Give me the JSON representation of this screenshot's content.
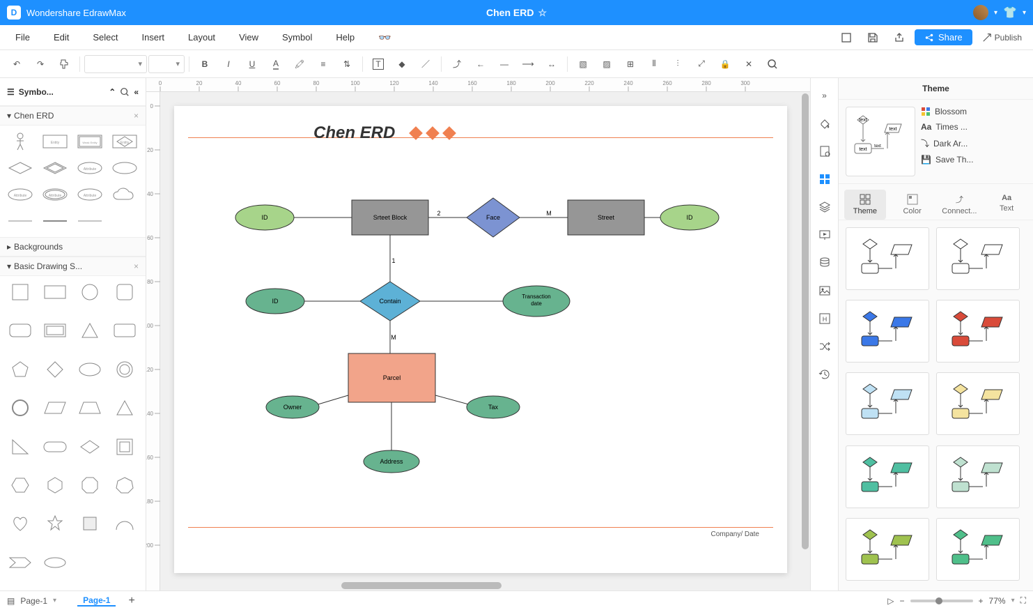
{
  "app_name": "Wondershare EdrawMax",
  "document_name": "Chen ERD",
  "menubar": {
    "items": [
      "File",
      "Edit",
      "Select",
      "Insert",
      "Layout",
      "View",
      "Symbol",
      "Help"
    ]
  },
  "actions": {
    "share": "Share",
    "publish": "Publish"
  },
  "left_panel": {
    "header": "Symbo...",
    "sections": {
      "chen": "Chen ERD",
      "backgrounds": "Backgrounds",
      "basic": "Basic Drawing S..."
    }
  },
  "canvas": {
    "ruler_ticks": [
      "0",
      "20",
      "40",
      "60",
      "80",
      "100",
      "120",
      "140",
      "160",
      "180",
      "200",
      "220",
      "240",
      "260",
      "280",
      "300"
    ],
    "v_ticks": [
      "0",
      "20",
      "40",
      "60",
      "80",
      "100",
      "120",
      "140",
      "160",
      "180",
      "200"
    ],
    "title": "Chen ERD",
    "footer": "Company/ Date",
    "nodes": {
      "id1": "ID",
      "street_block": "Srteet Block",
      "face": "Face",
      "street": "Street",
      "id2": "ID",
      "id3": "ID",
      "contain": "Contain",
      "transaction": "Transaction date",
      "parcel": "Parcel",
      "owner": "Owner",
      "tax": "Tax",
      "address": "Address"
    },
    "edge_labels": {
      "two": "2",
      "m1": "M",
      "one": "1",
      "m2": "M"
    },
    "colors": {
      "attr_green": "#a7d48a",
      "attr_teal": "#67b38f",
      "entity_gray": "#969696",
      "entity_salmon": "#f2a48a",
      "rel_blue": "#7c93d2",
      "rel_cyan": "#5db1d6",
      "stroke": "#333333"
    }
  },
  "right_panel": {
    "title": "Theme",
    "props": {
      "blossom": "Blossom",
      "font": "Times ...",
      "connector": "Dark Ar...",
      "save": "Save Th..."
    },
    "tabs": {
      "theme": "Theme",
      "color": "Color",
      "connector": "Connect...",
      "text": "Text"
    },
    "preview_text": "text",
    "theme_accent_colors": [
      "#000000",
      "#000000",
      "#3b78e7",
      "#d94b3a",
      "#bfe1f4",
      "#f4e39f",
      "#4fbfa1",
      "#bfe1d0",
      "#9fc24f",
      "#4fbf8a"
    ]
  },
  "statusbar": {
    "page_select": "Page-1",
    "page_tab": "Page-1",
    "zoom": "77%"
  }
}
